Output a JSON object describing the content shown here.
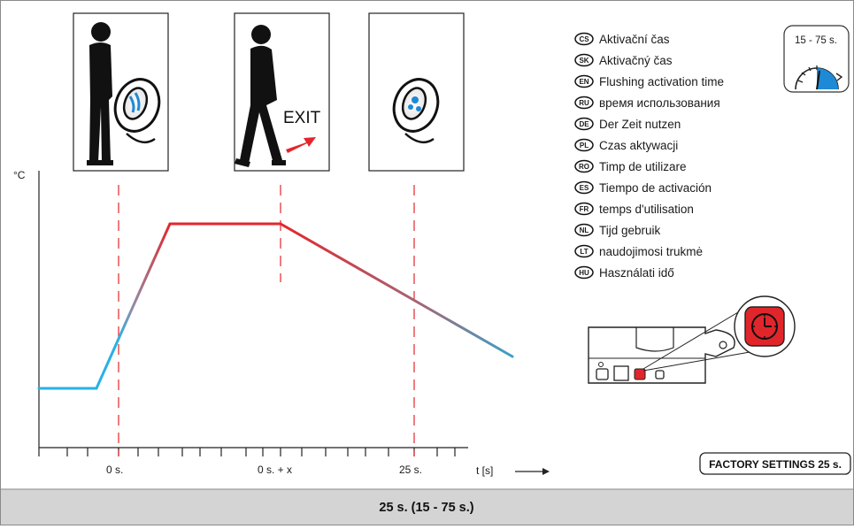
{
  "chart": {
    "y_unit": "°C",
    "x_unit": "t [s]",
    "x_ticks": [
      "0 s.",
      "0 s. + x",
      "25 s."
    ]
  },
  "scenes": {
    "exit_label": "EXIT"
  },
  "languages": [
    {
      "code": "CS",
      "text": "Aktivační čas"
    },
    {
      "code": "SK",
      "text": "Aktivačný čas"
    },
    {
      "code": "EN",
      "text": "Flushing activation time"
    },
    {
      "code": "RU",
      "text": "время использования"
    },
    {
      "code": "DE",
      "text": "Der Zeit nutzen"
    },
    {
      "code": "PL",
      "text": "Czas aktywacji"
    },
    {
      "code": "RO",
      "text": "Timp de utilizare"
    },
    {
      "code": "ES",
      "text": "Tiempo de activación"
    },
    {
      "code": "FR",
      "text": "temps d'utilisation"
    },
    {
      "code": "NL",
      "text": "Tijd gebruik"
    },
    {
      "code": "LT",
      "text": "naudojimosi trukmė"
    },
    {
      "code": "HU",
      "text": "Használati idő"
    }
  ],
  "dial": {
    "range_label": "15 - 75 s.",
    "accent_color": "#1e8ad6"
  },
  "device": {
    "button_color": "#e0262b"
  },
  "factory_settings": "FACTORY SETTINGS 25 s.",
  "footer": {
    "summary": "25 s. (15 - 75 s.)"
  },
  "colors": {
    "curve_cold": "#27b1e6",
    "curve_hot": "#e3262c",
    "marker": "#e3262c",
    "footer_bg": "#d4d4d4"
  }
}
